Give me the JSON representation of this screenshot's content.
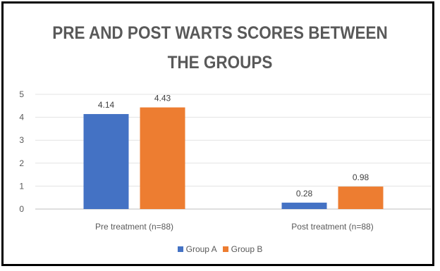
{
  "chart_data": {
    "type": "bar",
    "title_lines": [
      "PRE AND POST WARTS SCORES BETWEEN",
      "THE GROUPS"
    ],
    "categories": [
      "Pre treatment (n=88)",
      "Post treatment (n=88)"
    ],
    "series": [
      {
        "name": "Group A",
        "values": [
          4.14,
          0.28
        ],
        "color": "#4472C4"
      },
      {
        "name": "Group B",
        "values": [
          4.43,
          0.98
        ],
        "color": "#ED7D31"
      }
    ],
    "data_labels": [
      [
        "4.14",
        "0.28"
      ],
      [
        "4.43",
        "0.98"
      ]
    ],
    "ylim": [
      0,
      5
    ],
    "yticks": [
      0,
      1,
      2,
      3,
      4,
      5
    ],
    "grid": true,
    "legend": "bottom"
  }
}
